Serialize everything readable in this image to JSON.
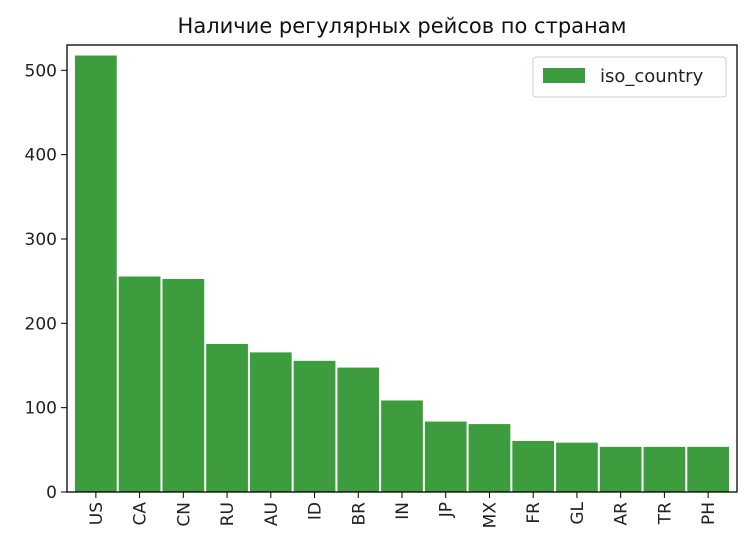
{
  "chart_data": {
    "type": "bar",
    "title": "Наличие регулярных рейсов по странам",
    "xlabel": "",
    "ylabel": "",
    "categories": [
      "US",
      "CA",
      "CN",
      "RU",
      "AU",
      "ID",
      "BR",
      "IN",
      "JP",
      "MX",
      "FR",
      "GL",
      "AR",
      "TR",
      "PH"
    ],
    "series": [
      {
        "name": "iso_country",
        "values": [
          518,
          256,
          253,
          176,
          166,
          156,
          148,
          109,
          84,
          81,
          61,
          59,
          54,
          54,
          54
        ]
      }
    ],
    "ylim": [
      0,
      530
    ],
    "yticks": [
      0,
      100,
      200,
      300,
      400,
      500
    ],
    "grid": false,
    "legend": "top-right",
    "colors": {
      "bar": "#3d9c3d",
      "bar_edge": "#ffffff",
      "axis": "#000000",
      "legend_border": "#cccccc"
    }
  }
}
